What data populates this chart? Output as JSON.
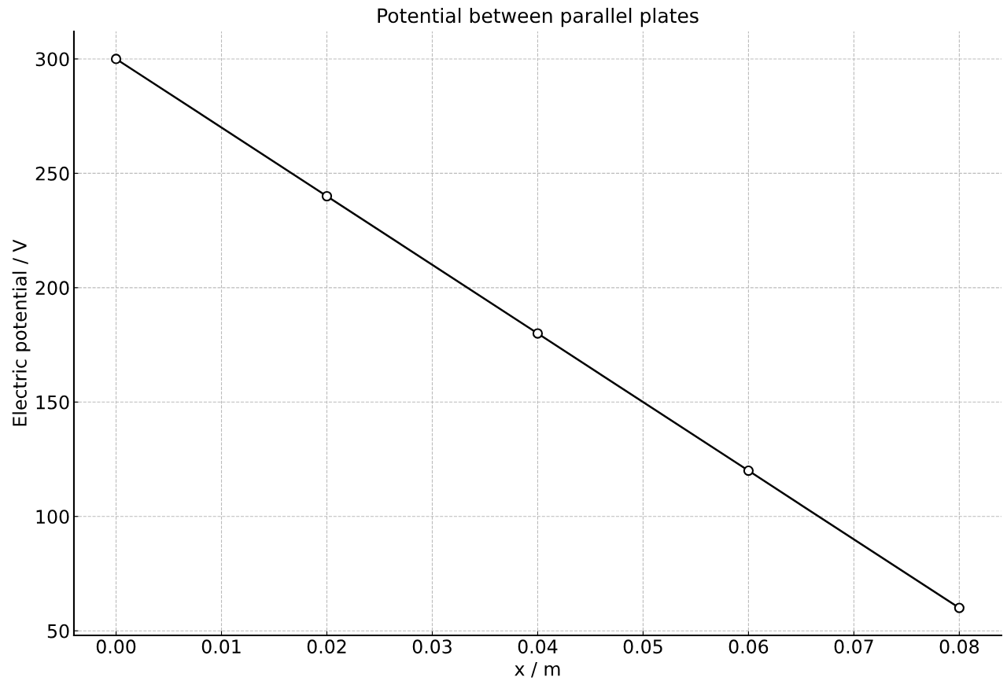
{
  "chart_data": {
    "type": "line",
    "title": "Potential between parallel plates",
    "xlabel": "x / m",
    "ylabel": "Electric potential / V",
    "x": [
      0.0,
      0.02,
      0.04,
      0.06,
      0.08
    ],
    "series": [
      {
        "color": "#000000",
        "values": [
          300,
          240,
          180,
          120,
          60
        ]
      }
    ],
    "xlim": [
      -0.004,
      0.084
    ],
    "xticks": [
      {
        "value": 0.0,
        "label": "0.00"
      },
      {
        "value": 0.01,
        "label": "0.01"
      },
      {
        "value": 0.02,
        "label": "0.02"
      },
      {
        "value": 0.03,
        "label": "0.03"
      },
      {
        "value": 0.04,
        "label": "0.04"
      },
      {
        "value": 0.05,
        "label": "0.05"
      },
      {
        "value": 0.06,
        "label": "0.06"
      },
      {
        "value": 0.07,
        "label": "0.07"
      },
      {
        "value": 0.08,
        "label": "0.08"
      }
    ],
    "ylim": [
      48,
      312
    ],
    "yticks": [
      50,
      100,
      150,
      200,
      250,
      300
    ],
    "grid": true,
    "marker": "circle",
    "line_style": "solid",
    "legend": false
  }
}
